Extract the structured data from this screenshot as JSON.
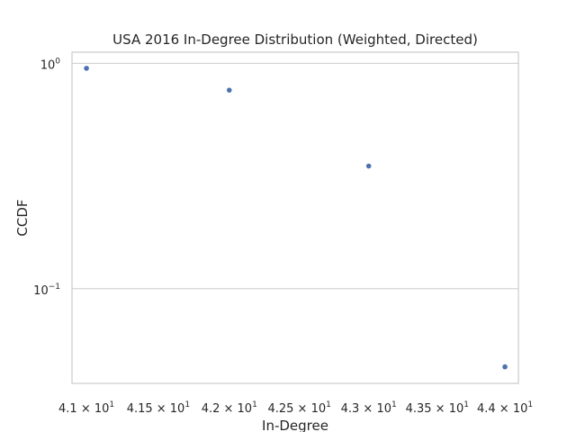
{
  "chart_data": {
    "type": "scatter",
    "title": "USA 2016 In-Degree Distribution (Weighted, Directed)",
    "xlabel": "In-Degree",
    "ylabel": "CCDF",
    "x_scale": "log",
    "y_scale": "log",
    "xlim": [
      40.9,
      44.1
    ],
    "ylim": [
      0.038,
      1.12
    ],
    "grid": "horizontal",
    "x": [
      41,
      42,
      43,
      44
    ],
    "y": [
      0.95,
      0.76,
      0.35,
      0.045
    ],
    "x_ticks": [
      {
        "value": 41,
        "mantissa": "4.1",
        "base": "10",
        "exp": "1"
      },
      {
        "value": 41.5,
        "mantissa": "4.15",
        "base": "10",
        "exp": "1"
      },
      {
        "value": 42,
        "mantissa": "4.2",
        "base": "10",
        "exp": "1"
      },
      {
        "value": 42.5,
        "mantissa": "4.25",
        "base": "10",
        "exp": "1"
      },
      {
        "value": 43,
        "mantissa": "4.3",
        "base": "10",
        "exp": "1"
      },
      {
        "value": 43.5,
        "mantissa": "4.35",
        "base": "10",
        "exp": "1"
      },
      {
        "value": 44,
        "mantissa": "4.4",
        "base": "10",
        "exp": "1"
      }
    ],
    "y_ticks": [
      {
        "value": 1,
        "base": "10",
        "exp": "0"
      },
      {
        "value": 0.1,
        "base": "10",
        "exp": "−1"
      }
    ],
    "times_sign": "×",
    "point_color": "#4c72b0",
    "grid_color": "#cccccc"
  }
}
